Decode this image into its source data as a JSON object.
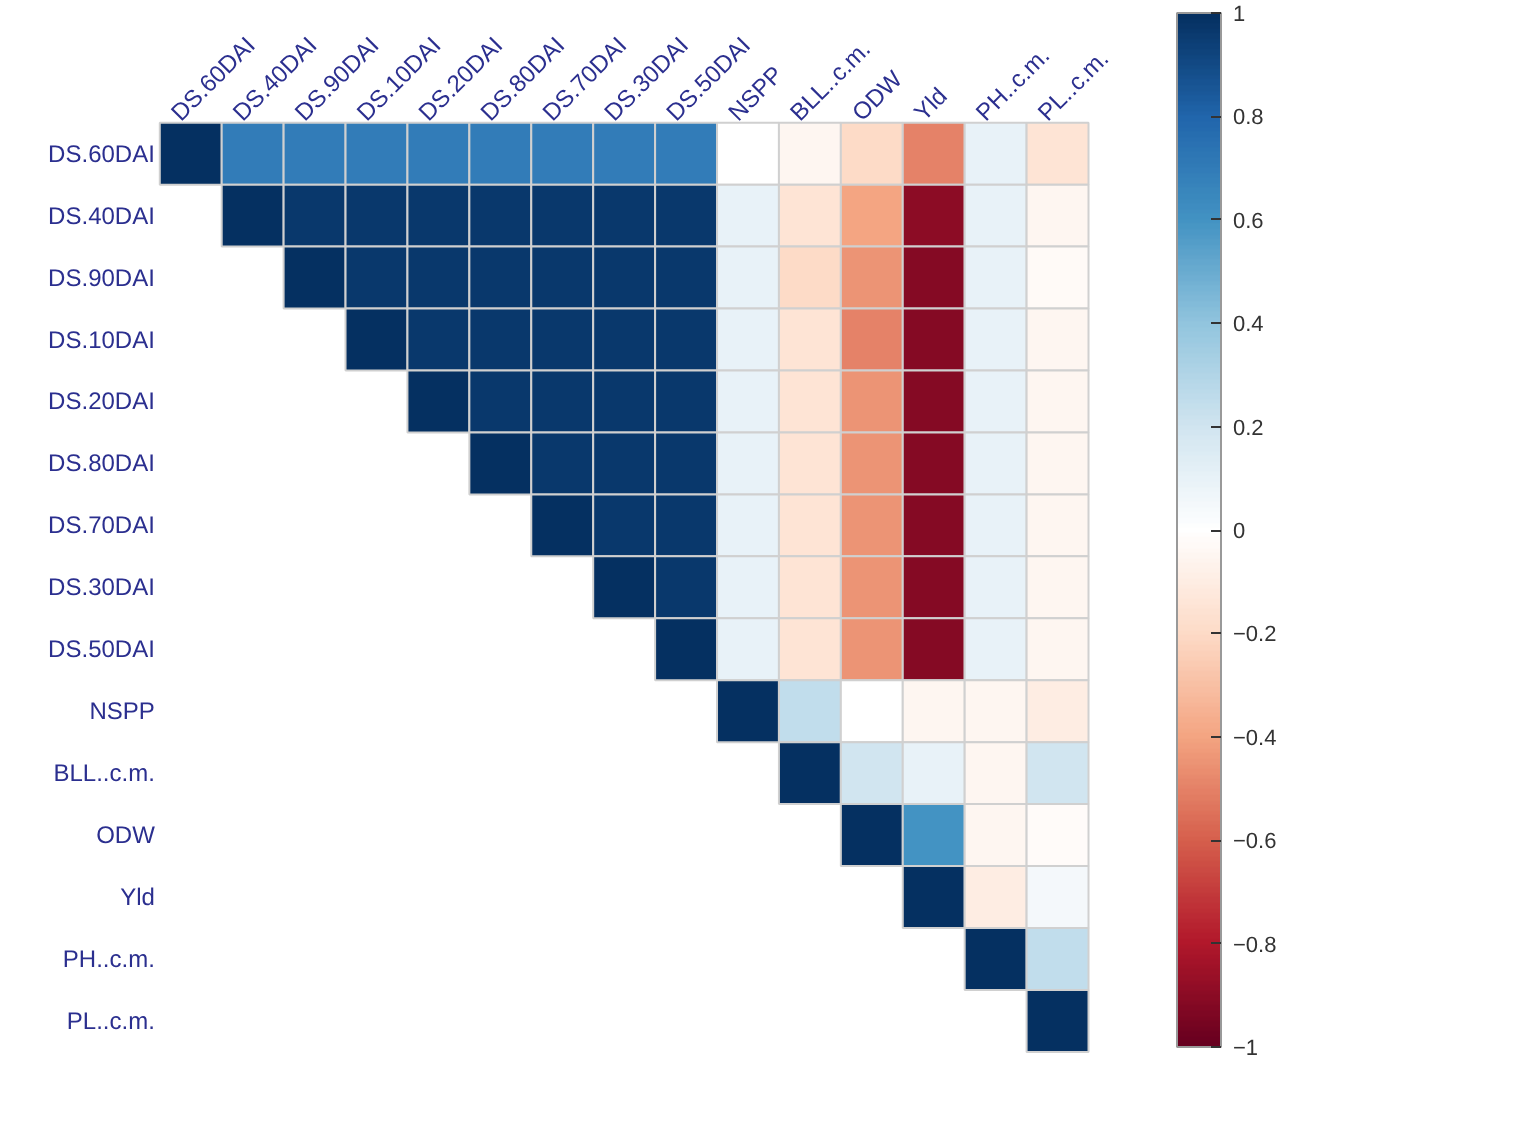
{
  "chart_data": {
    "type": "heatmap",
    "categories": [
      "DS.60DAI",
      "DS.40DAI",
      "DS.90DAI",
      "DS.10DAI",
      "DS.20DAI",
      "DS.80DAI",
      "DS.70DAI",
      "DS.30DAI",
      "DS.50DAI",
      "NSPP",
      "BLL..c.m.",
      "ODW",
      "Yld",
      "PH..c.m.",
      "PL..c.m."
    ],
    "y_categories": [
      "DS.60DAI",
      "DS.40DAI",
      "DS.90DAI",
      "DS.10DAI",
      "DS.20DAI",
      "DS.80DAI",
      "DS.70DAI",
      "DS.30DAI",
      "DS.50DAI",
      "NSPP",
      "BLL..c.m.",
      "ODW",
      "Yld",
      "PH..c.m.",
      "PL..c.m."
    ],
    "cells": [
      [
        1,
        0.7,
        0.7,
        0.7,
        0.7,
        0.7,
        0.7,
        0.7,
        0.7,
        0,
        -0.05,
        -0.2,
        -0.5,
        0.1,
        -0.15
      ],
      [
        null,
        1,
        0.97,
        0.97,
        0.97,
        0.97,
        0.97,
        0.97,
        0.97,
        0.1,
        -0.15,
        -0.4,
        -0.9,
        0.1,
        -0.05
      ],
      [
        null,
        null,
        1,
        0.97,
        0.97,
        0.97,
        0.97,
        0.97,
        0.97,
        0.1,
        -0.2,
        -0.45,
        -0.92,
        0.1,
        -0.03
      ],
      [
        null,
        null,
        null,
        1,
        0.97,
        0.97,
        0.97,
        0.97,
        0.97,
        0.1,
        -0.15,
        -0.5,
        -0.92,
        0.1,
        -0.05
      ],
      [
        null,
        null,
        null,
        null,
        1,
        0.97,
        0.97,
        0.97,
        0.97,
        0.1,
        -0.15,
        -0.45,
        -0.92,
        0.1,
        -0.05
      ],
      [
        null,
        null,
        null,
        null,
        null,
        1,
        0.97,
        0.97,
        0.97,
        0.1,
        -0.15,
        -0.45,
        -0.92,
        0.1,
        -0.05
      ],
      [
        null,
        null,
        null,
        null,
        null,
        null,
        1,
        0.97,
        0.97,
        0.1,
        -0.15,
        -0.45,
        -0.92,
        0.1,
        -0.05
      ],
      [
        null,
        null,
        null,
        null,
        null,
        null,
        null,
        1,
        0.97,
        0.1,
        -0.15,
        -0.45,
        -0.92,
        0.1,
        -0.05
      ],
      [
        null,
        null,
        null,
        null,
        null,
        null,
        null,
        null,
        1,
        0.1,
        -0.15,
        -0.45,
        -0.92,
        0.1,
        -0.05
      ],
      [
        null,
        null,
        null,
        null,
        null,
        null,
        null,
        null,
        null,
        1,
        0.25,
        0,
        -0.05,
        -0.05,
        -0.1
      ],
      [
        null,
        null,
        null,
        null,
        null,
        null,
        null,
        null,
        null,
        null,
        1,
        0.2,
        0.1,
        -0.05,
        0.2
      ],
      [
        null,
        null,
        null,
        null,
        null,
        null,
        null,
        null,
        null,
        null,
        null,
        1,
        0.6,
        -0.05,
        -0.02
      ],
      [
        null,
        null,
        null,
        null,
        null,
        null,
        null,
        null,
        null,
        null,
        null,
        null,
        1,
        -0.1,
        0.05
      ],
      [
        null,
        null,
        null,
        null,
        null,
        null,
        null,
        null,
        null,
        null,
        null,
        null,
        null,
        1,
        0.25
      ],
      [
        null,
        null,
        null,
        null,
        null,
        null,
        null,
        null,
        null,
        null,
        null,
        null,
        null,
        null,
        1
      ]
    ],
    "clim": [
      -1,
      1
    ],
    "cticks": [
      -1,
      -0.8,
      -0.6,
      -0.4,
      -0.2,
      0,
      0.2,
      0.4,
      0.6,
      0.8,
      1
    ]
  }
}
